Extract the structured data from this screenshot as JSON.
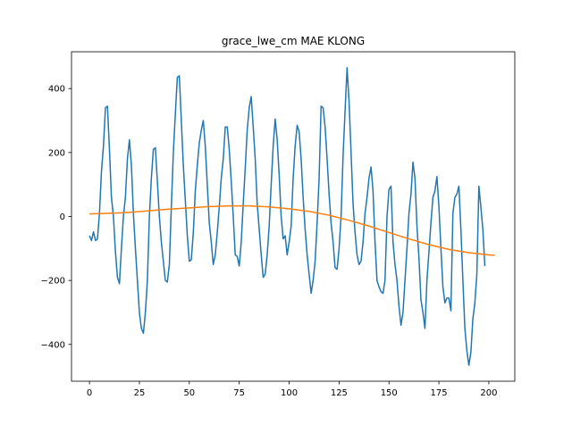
{
  "chart_data": {
    "type": "line",
    "title": "grace_lwe_cm MAE KLONG",
    "xlabel": "",
    "ylabel": "",
    "xlim": [
      -9,
      213
    ],
    "ylim": [
      -515,
      515
    ],
    "xticks": [
      0,
      25,
      50,
      75,
      100,
      125,
      150,
      175,
      200
    ],
    "yticks": [
      -400,
      -200,
      0,
      200,
      400
    ],
    "grid": false,
    "legend": "none",
    "colors": {
      "observed": "#1f77b4",
      "trend": "#ff7f0e"
    },
    "series": [
      {
        "values": [
          -60,
          -75,
          -48,
          -75,
          -70,
          10,
          140,
          220,
          340,
          345,
          210,
          60,
          0,
          -110,
          -190,
          -210,
          -100,
          0,
          60,
          180,
          240,
          160,
          10,
          -100,
          -200,
          -300,
          -350,
          -365,
          -300,
          -200,
          0,
          120,
          210,
          215,
          110,
          0,
          -80,
          -140,
          -200,
          -205,
          -150,
          30,
          200,
          320,
          435,
          440,
          300,
          160,
          50,
          -60,
          -140,
          -135,
          -50,
          80,
          160,
          230,
          270,
          300,
          220,
          100,
          -20,
          -80,
          -150,
          -120,
          -50,
          30,
          120,
          180,
          280,
          280,
          210,
          110,
          0,
          -120,
          -125,
          -155,
          -80,
          40,
          150,
          270,
          340,
          375,
          280,
          180,
          40,
          -40,
          -120,
          -190,
          -180,
          -120,
          -30,
          100,
          220,
          305,
          240,
          130,
          0,
          -70,
          -60,
          -120,
          -80,
          -30,
          120,
          220,
          285,
          265,
          180,
          60,
          -40,
          -120,
          -180,
          -240,
          -200,
          -140,
          -20,
          120,
          345,
          340,
          280,
          180,
          70,
          -20,
          -80,
          -160,
          -165,
          -100,
          0,
          190,
          330,
          465,
          360,
          200,
          40,
          -50,
          -120,
          -150,
          -140,
          -80,
          10,
          60,
          120,
          155,
          80,
          -80,
          -200,
          -220,
          -235,
          -240,
          -200,
          0,
          85,
          95,
          -80,
          -150,
          -200,
          -280,
          -340,
          -300,
          -200,
          -100,
          10,
          70,
          170,
          120,
          -30,
          -130,
          -260,
          -300,
          -350,
          -200,
          -110,
          -20,
          60,
          80,
          125,
          30,
          -100,
          -220,
          -270,
          -255,
          -255,
          -295,
          10,
          60,
          70,
          95,
          -40,
          -200,
          -350,
          -420,
          -465,
          -425,
          -320,
          -270,
          -180,
          95,
          30,
          -40,
          -155
        ]
      },
      {
        "x": [
          0,
          10,
          20,
          30,
          40,
          50,
          60,
          70,
          75,
          80,
          90,
          100,
          110,
          120,
          130,
          140,
          150,
          160,
          170,
          180,
          190,
          200,
          203
        ],
        "values": [
          8,
          10,
          13,
          18,
          23,
          27,
          31,
          33,
          33,
          33,
          30,
          24,
          16,
          4,
          -12,
          -30,
          -50,
          -70,
          -88,
          -103,
          -113,
          -120,
          -121
        ]
      }
    ]
  }
}
